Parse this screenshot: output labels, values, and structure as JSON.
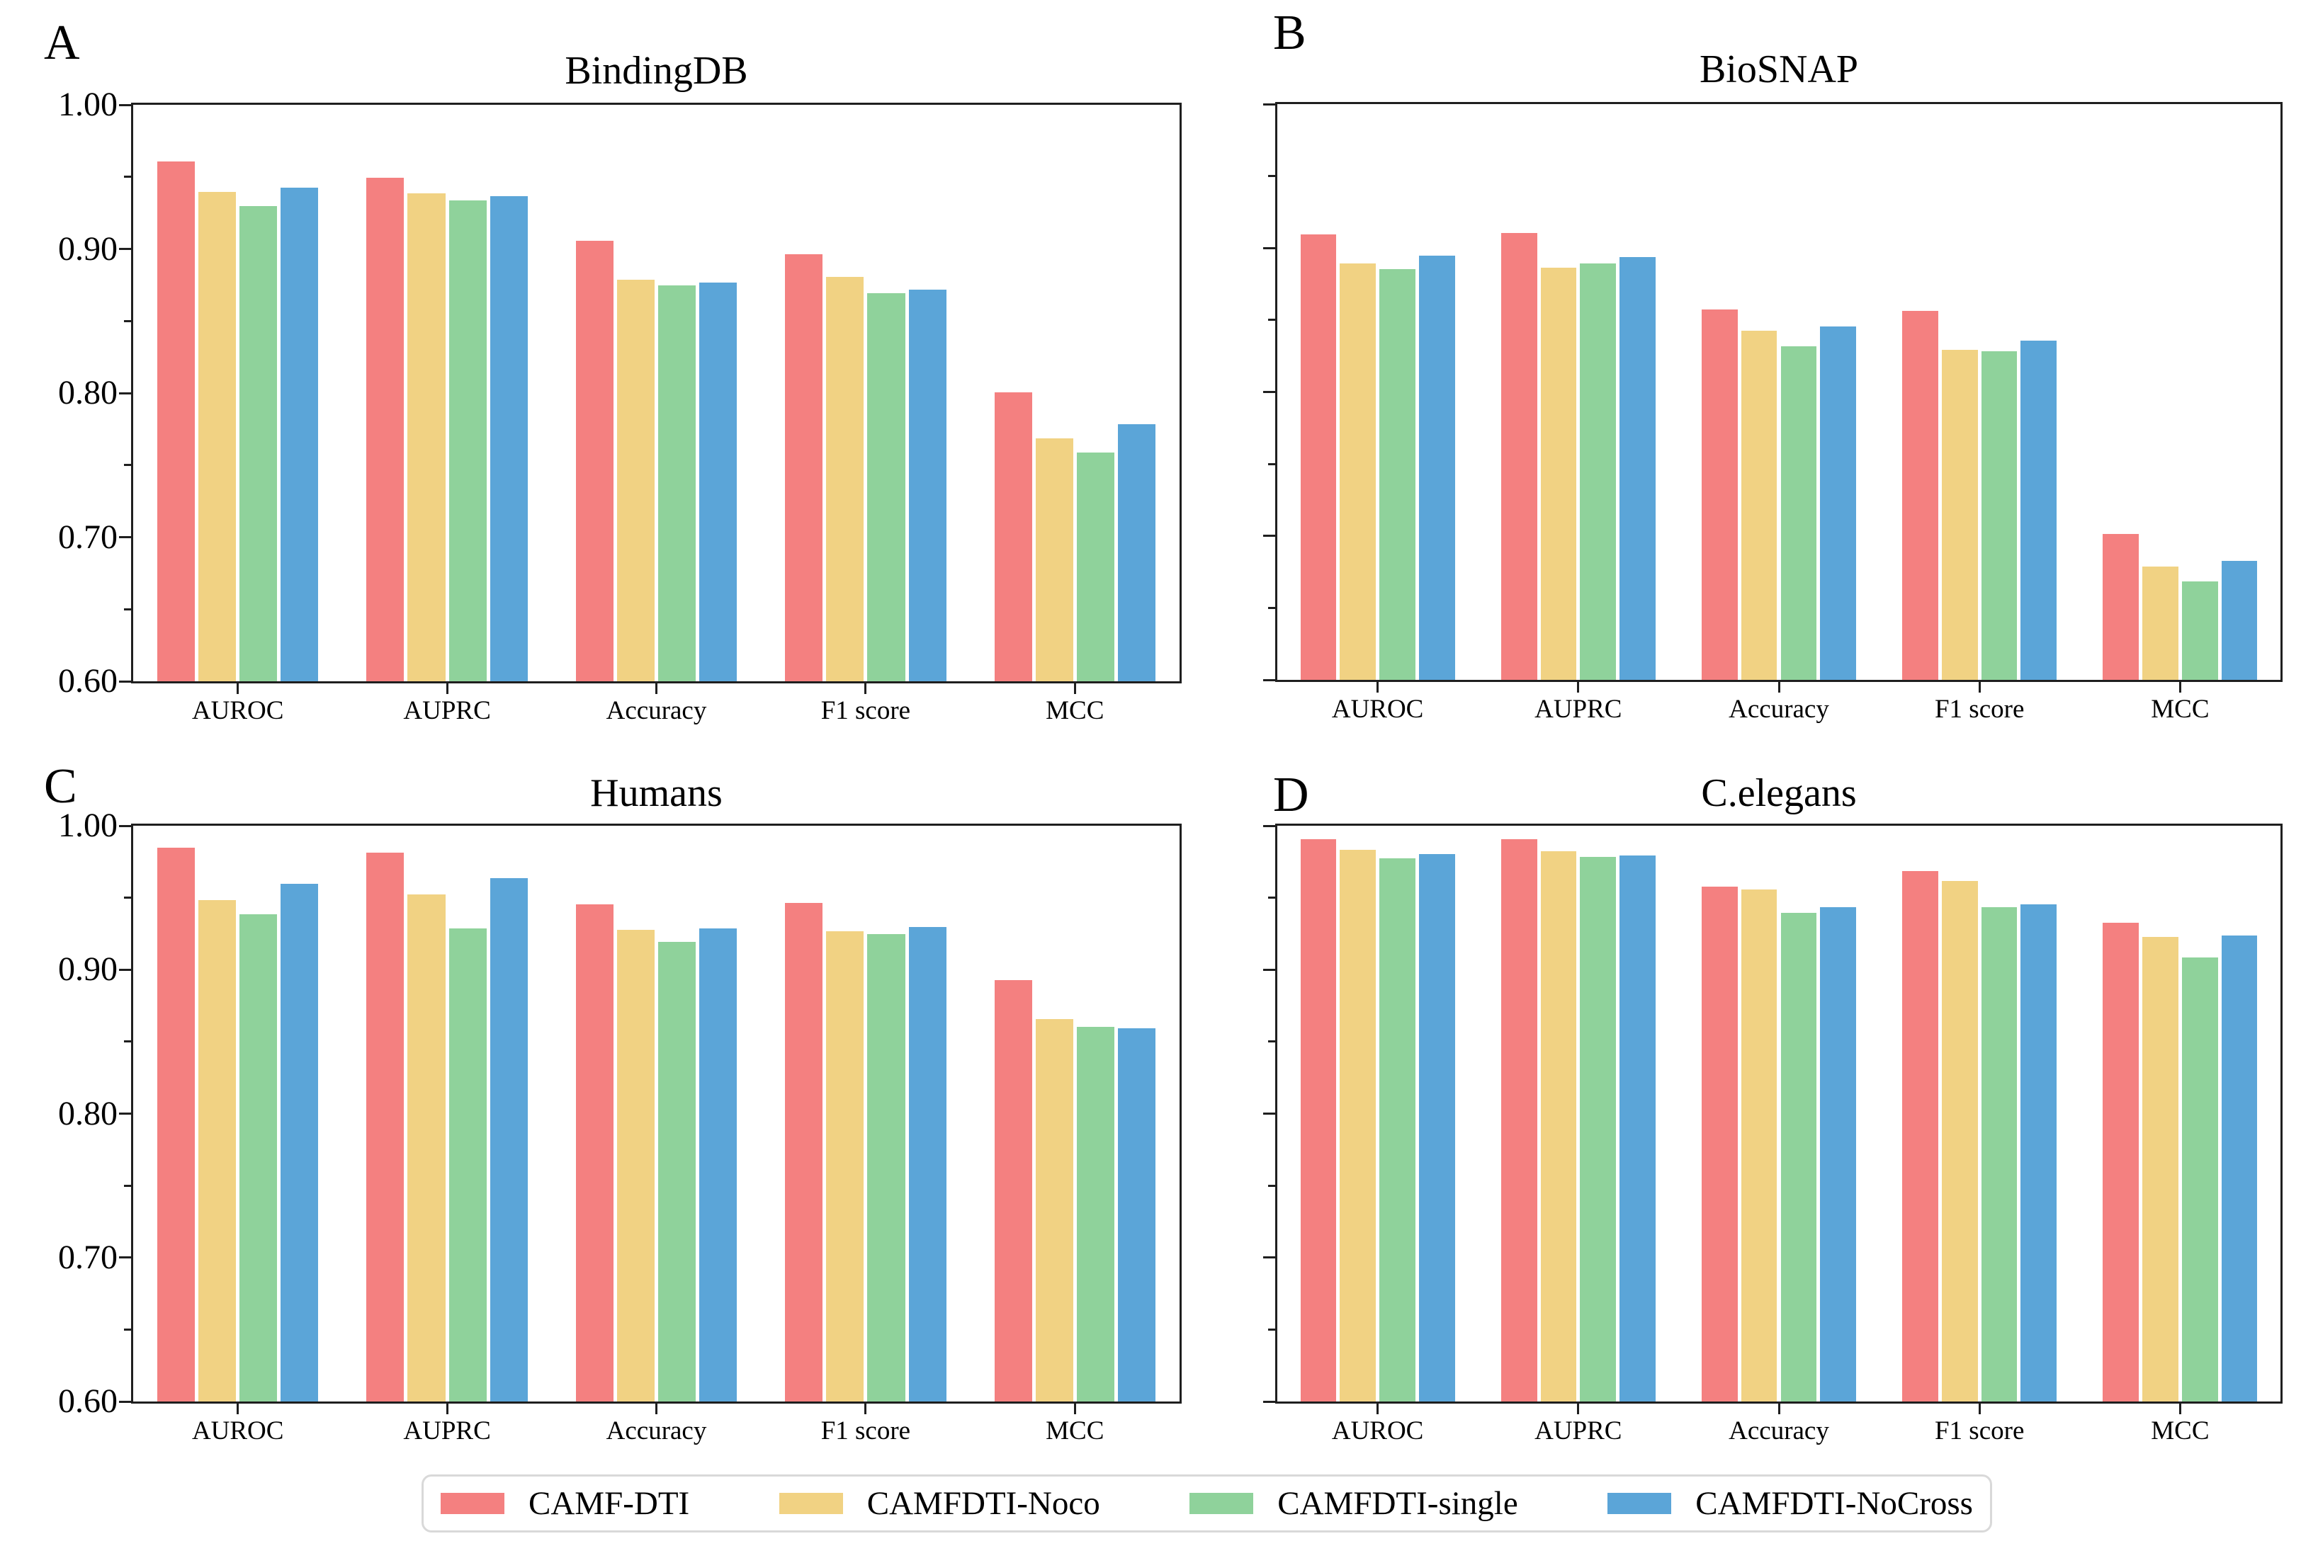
{
  "figure": {
    "background": "#ffffff",
    "y_axis": {
      "tick_labels": [
        "1.00",
        "0.90",
        "0.80",
        "0.70",
        "0.60"
      ],
      "minor_ticks": [
        0.95,
        0.85,
        0.75,
        0.65
      ],
      "labeled_panels": [
        "A",
        "C"
      ]
    }
  },
  "legend": {
    "entries": [
      {
        "label": "CAMF-DTI",
        "color": "#f48080"
      },
      {
        "label": "CAMFDTI-Noco",
        "color": "#f1d283"
      },
      {
        "label": "CAMFDTI-single",
        "color": "#8fd29b"
      },
      {
        "label": "CAMFDTI-NoCross",
        "color": "#5ba5d8"
      }
    ]
  },
  "chart_data": [
    {
      "type": "bar",
      "panel_label": "A",
      "title": "BindingDB",
      "categories": [
        "AUROC",
        "AUPRC",
        "Accuracy",
        "F1 score",
        "MCC"
      ],
      "ylim": [
        0.6,
        1.0
      ],
      "grid": false,
      "series": [
        {
          "name": "CAMF-DTI",
          "color": "#f48080",
          "values": [
            0.962,
            0.951,
            0.907,
            0.898,
            0.802
          ]
        },
        {
          "name": "CAMFDTI-Noco",
          "color": "#f1d283",
          "values": [
            0.941,
            0.94,
            0.88,
            0.882,
            0.77
          ]
        },
        {
          "name": "CAMFDTI-single",
          "color": "#8fd29b",
          "values": [
            0.931,
            0.935,
            0.876,
            0.871,
            0.76
          ]
        },
        {
          "name": "CAMFDTI-NoCross",
          "color": "#5ba5d8",
          "values": [
            0.944,
            0.938,
            0.878,
            0.873,
            0.78
          ]
        }
      ]
    },
    {
      "type": "bar",
      "panel_label": "B",
      "title": "BioSNAP",
      "categories": [
        "AUROC",
        "AUPRC",
        "Accuracy",
        "F1 score",
        "MCC"
      ],
      "ylim": [
        0.6,
        1.0
      ],
      "grid": false,
      "series": [
        {
          "name": "CAMF-DTI",
          "color": "#f48080",
          "values": [
            0.911,
            0.912,
            0.859,
            0.858,
            0.703
          ]
        },
        {
          "name": "CAMFDTI-Noco",
          "color": "#f1d283",
          "values": [
            0.891,
            0.888,
            0.844,
            0.831,
            0.68
          ]
        },
        {
          "name": "CAMFDTI-single",
          "color": "#8fd29b",
          "values": [
            0.887,
            0.891,
            0.833,
            0.83,
            0.67
          ]
        },
        {
          "name": "CAMFDTI-NoCross",
          "color": "#5ba5d8",
          "values": [
            0.896,
            0.895,
            0.847,
            0.837,
            0.684
          ]
        }
      ]
    },
    {
      "type": "bar",
      "panel_label": "C",
      "title": "Humans",
      "categories": [
        "AUROC",
        "AUPRC",
        "Accuracy",
        "F1 score",
        "MCC"
      ],
      "ylim": [
        0.6,
        1.0
      ],
      "grid": false,
      "series": [
        {
          "name": "CAMF-DTI",
          "color": "#f48080",
          "values": [
            0.986,
            0.983,
            0.947,
            0.948,
            0.894
          ]
        },
        {
          "name": "CAMFDTI-Noco",
          "color": "#f1d283",
          "values": [
            0.95,
            0.954,
            0.929,
            0.928,
            0.867
          ]
        },
        {
          "name": "CAMFDTI-single",
          "color": "#8fd29b",
          "values": [
            0.94,
            0.93,
            0.921,
            0.926,
            0.862
          ]
        },
        {
          "name": "CAMFDTI-NoCross",
          "color": "#5ba5d8",
          "values": [
            0.961,
            0.965,
            0.93,
            0.931,
            0.861
          ]
        }
      ]
    },
    {
      "type": "bar",
      "panel_label": "D",
      "title": "C.elegans",
      "categories": [
        "AUROC",
        "AUPRC",
        "Accuracy",
        "F1 score",
        "MCC"
      ],
      "ylim": [
        0.6,
        1.0
      ],
      "grid": false,
      "series": [
        {
          "name": "CAMF-DTI",
          "color": "#f48080",
          "values": [
            0.992,
            0.992,
            0.959,
            0.97,
            0.934
          ]
        },
        {
          "name": "CAMFDTI-Noco",
          "color": "#f1d283",
          "values": [
            0.985,
            0.984,
            0.957,
            0.963,
            0.924
          ]
        },
        {
          "name": "CAMFDTI-single",
          "color": "#8fd29b",
          "values": [
            0.979,
            0.98,
            0.941,
            0.945,
            0.91
          ]
        },
        {
          "name": "CAMFDTI-NoCross",
          "color": "#5ba5d8",
          "values": [
            0.982,
            0.981,
            0.945,
            0.947,
            0.925
          ]
        }
      ]
    }
  ]
}
